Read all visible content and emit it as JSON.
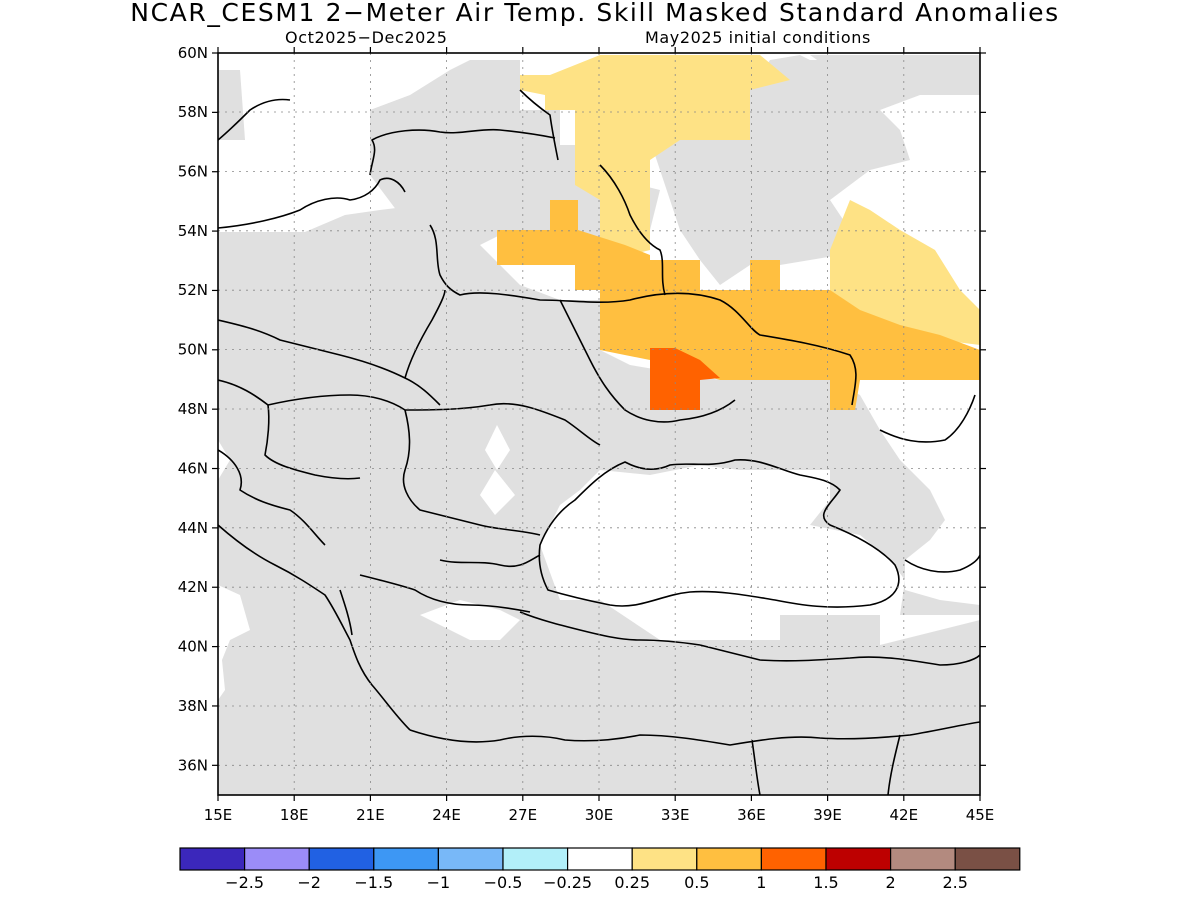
{
  "title": "NCAR_CESM1 2−Meter Air Temp. Skill Masked Standard Anomalies",
  "subtitle_left": "Oct2025−Dec2025",
  "subtitle_right": "May2025 initial conditions",
  "map": {
    "lon_range": [
      15,
      45
    ],
    "lat_range": [
      35,
      60
    ],
    "lon_labels": [
      "15E",
      "18E",
      "21E",
      "24E",
      "27E",
      "30E",
      "33E",
      "36E",
      "39E",
      "42E",
      "45E"
    ],
    "lat_labels": [
      "36N",
      "38N",
      "40N",
      "42N",
      "44N",
      "46N",
      "48N",
      "50N",
      "52N",
      "54N",
      "56N",
      "58N",
      "60N"
    ],
    "colors": {
      "masked": "#e0e0e0",
      "anom_0_25_0_5": "#fee285",
      "anom_0_5_1": "#ffbf40",
      "anom_1_1_5": "#ff6200",
      "land_outline": "#000000"
    }
  },
  "colorbar": {
    "colors": [
      "#3b27bb",
      "#9b8cf8",
      "#2161e3",
      "#3d97f4",
      "#78b8f8",
      "#b2eff9",
      "#ffffff",
      "#fee285",
      "#ffbf40",
      "#ff6200",
      "#bd0000",
      "#b38a7f",
      "#7a5045"
    ],
    "labels": [
      "−2.5",
      "−2",
      "−1.5",
      "−1",
      "−0.5",
      "−0.25",
      "0.25",
      "0.5",
      "1",
      "1.5",
      "2",
      "2.5"
    ]
  }
}
